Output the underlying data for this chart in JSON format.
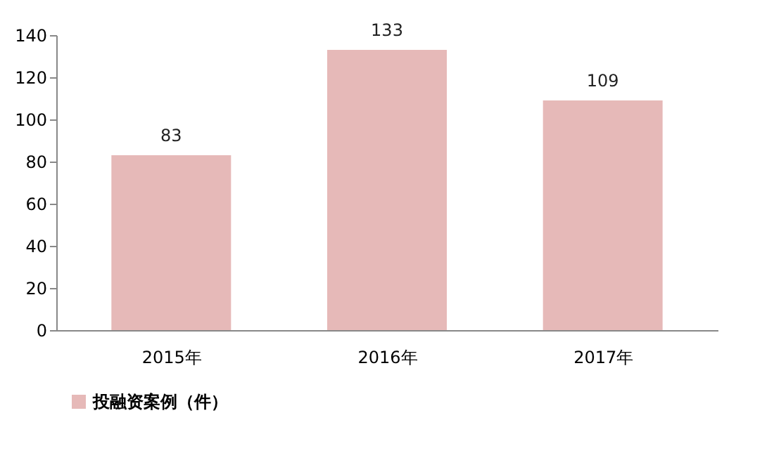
{
  "chart_data": {
    "type": "bar",
    "categories": [
      "2015年",
      "2016年",
      "2017年"
    ],
    "series": [
      {
        "name": "投融资案例（件）",
        "color": "#e6b9b8",
        "values": [
          83,
          133,
          109
        ]
      }
    ],
    "ylim": [
      0,
      140
    ],
    "yticks": [
      0,
      20,
      40,
      60,
      80,
      100,
      120,
      140
    ],
    "data_labels": true,
    "grid": false,
    "legend": "bottom left"
  }
}
